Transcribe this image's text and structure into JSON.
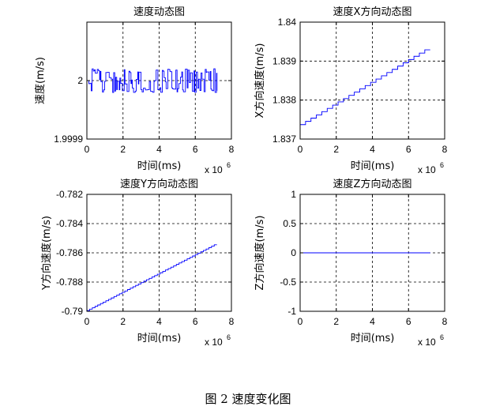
{
  "caption": "图 2  速度变化图",
  "chart_data": [
    {
      "type": "line",
      "title": "速度动态图",
      "xlabel": "时间(ms)",
      "ylabel": "速度(m/s)",
      "x_exponent": "x 10",
      "x_exponent_power": "6",
      "xlim": [
        0,
        8
      ],
      "ylim": [
        1.9999,
        2.0001
      ],
      "xticks": [
        0,
        2,
        4,
        6,
        8
      ],
      "xtick_labels": [
        "0",
        "2",
        "4",
        "6",
        "8"
      ],
      "yticks": [
        1.9999,
        2.0
      ],
      "ytick_labels": [
        "1.9999",
        "2"
      ],
      "grid": true,
      "line_color": "#0000ff",
      "series": [
        {
          "style": "noisy-step",
          "x_start": 0,
          "x_end": 7.2,
          "center": 2.0,
          "amplitude": 2.05e-05
        }
      ]
    },
    {
      "type": "line",
      "title": "速度X方向动态图",
      "xlabel": "时间(ms)",
      "ylabel": "X方向速度(m/s)",
      "x_exponent": "x 10",
      "x_exponent_power": "6",
      "xlim": [
        0,
        8
      ],
      "ylim": [
        1.837,
        1.84
      ],
      "xticks": [
        0,
        2,
        4,
        6,
        8
      ],
      "xtick_labels": [
        "0",
        "2",
        "4",
        "6",
        "8"
      ],
      "yticks": [
        1.837,
        1.838,
        1.839,
        1.84
      ],
      "ytick_labels": [
        "1.837",
        "1.838",
        "1.839",
        "1.84"
      ],
      "grid": true,
      "line_color": "#0000ff",
      "series": [
        {
          "style": "staircase",
          "x_start": 0,
          "x_end": 7.2,
          "y_start": 1.83737,
          "y_end": 1.83929,
          "steps": 24
        }
      ]
    },
    {
      "type": "line",
      "title": "速度Y方向动态图",
      "xlabel": "时间(ms)",
      "ylabel": "Y方向速度(m/s)",
      "x_exponent": "x 10",
      "x_exponent_power": "6",
      "xlim": [
        0,
        8
      ],
      "ylim": [
        -0.79,
        -0.782
      ],
      "xticks": [
        0,
        2,
        4,
        6,
        8
      ],
      "xtick_labels": [
        "0",
        "2",
        "4",
        "6",
        "8"
      ],
      "yticks": [
        -0.79,
        -0.788,
        -0.786,
        -0.784,
        -0.782
      ],
      "ytick_labels": [
        "-0.79",
        "-0.788",
        "-0.786",
        "-0.784",
        "-0.782"
      ],
      "grid": true,
      "line_color": "#0000ff",
      "series": [
        {
          "style": "staircase",
          "x_start": 0,
          "x_end": 7.2,
          "y_start": -0.78995,
          "y_end": -0.78545,
          "steps": 48
        }
      ]
    },
    {
      "type": "line",
      "title": "速度Z方向动态图",
      "xlabel": "时间(ms)",
      "ylabel": "Z方向速度(m/s)",
      "x_exponent": "x 10",
      "x_exponent_power": "6",
      "xlim": [
        0,
        8
      ],
      "ylim": [
        -1,
        1
      ],
      "xticks": [
        0,
        2,
        4,
        6,
        8
      ],
      "xtick_labels": [
        "0",
        "2",
        "4",
        "6",
        "8"
      ],
      "yticks": [
        -1,
        -0.5,
        0,
        0.5,
        1
      ],
      "ytick_labels": [
        "-1",
        "-0.5",
        "0",
        "0.5",
        "1"
      ],
      "grid": true,
      "line_color": "#0000ff",
      "series": [
        {
          "style": "flat",
          "x_start": 0,
          "x_end": 7.2,
          "value": 0
        }
      ]
    }
  ]
}
